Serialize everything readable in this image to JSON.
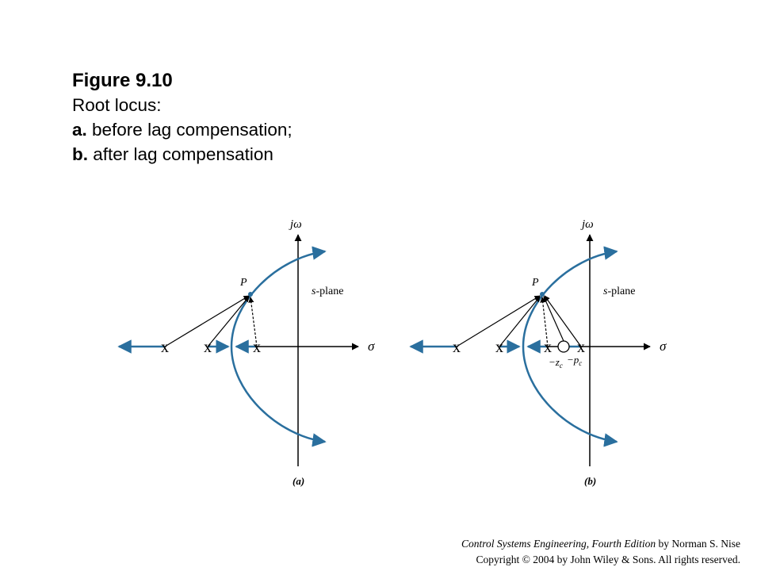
{
  "caption": {
    "title": "Figure 9.10",
    "line1": "Root locus:",
    "line2_bold": "a.",
    "line2_text": " before lag compensation;",
    "line3_bold": "b.",
    "line3_text": " after lag compensation"
  },
  "diagram_a": {
    "imag_axis_label": "jω",
    "real_axis_label": "σ",
    "plane_label_italic": "s",
    "plane_label_rest": "-plane",
    "point_label": "P",
    "pole_marker": "x",
    "panel_label": "(a)"
  },
  "diagram_b": {
    "imag_axis_label": "jω",
    "real_axis_label": "σ",
    "plane_label_italic": "s",
    "plane_label_rest": "-plane",
    "point_label": "P",
    "pole_marker": "x",
    "zero_label": "−z",
    "zero_subscript": "c",
    "pole_label": "−p",
    "pole_subscript": "c",
    "panel_label": "(b)"
  },
  "footer": {
    "book_title": "Control Systems Engineering, Fourth Edition",
    "author": " by Norman S. Nise",
    "copyright": "Copyright © 2004 by John Wiley & Sons. All rights reserved."
  },
  "colors": {
    "locus": "#2a6f9e",
    "axis": "#000000"
  }
}
